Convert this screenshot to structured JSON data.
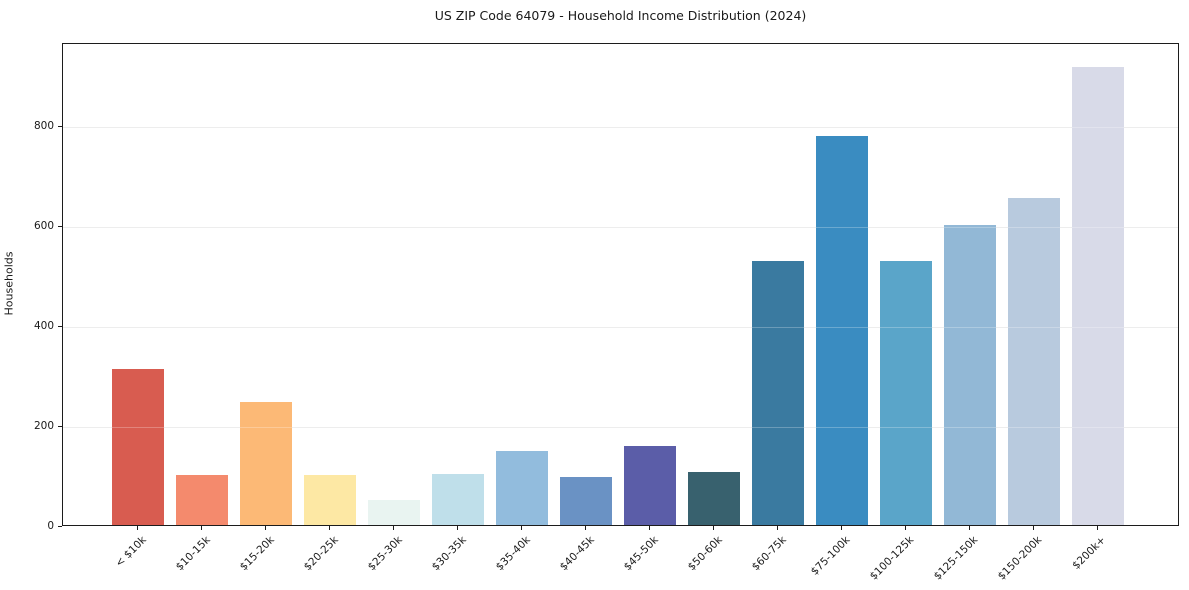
{
  "chart_data": {
    "type": "bar",
    "title": "US ZIP Code 64079 - Household Income Distribution (2024)",
    "ylabel": "Households",
    "xlabel": "",
    "categories": [
      "< $10k",
      "$10-15k",
      "$15-20k",
      "$20-25k",
      "$25-30k",
      "$30-35k",
      "$35-40k",
      "$40-45k",
      "$45-50k",
      "$50-60k",
      "$60-75k",
      "$75-100k",
      "$100-125k",
      "$125-150k",
      "$150-200k",
      "$200k+"
    ],
    "values": [
      313,
      101,
      247,
      101,
      50,
      103,
      148,
      97,
      158,
      107,
      529,
      778,
      529,
      600,
      654,
      916
    ],
    "bar_colors": [
      "#d85c50",
      "#f48a6d",
      "#fcb976",
      "#fde8a4",
      "#e9f4f1",
      "#bfdfea",
      "#92bcdd",
      "#6a92c4",
      "#5b5da8",
      "#38616e",
      "#3a7aa0",
      "#3a8cc1",
      "#5aa5c9",
      "#92b8d6",
      "#b8cade",
      "#d8dae8"
    ],
    "yticks": [
      0,
      200,
      400,
      600,
      800
    ],
    "ylim": [
      0,
      966
    ],
    "grid": "horizontal",
    "legend": false,
    "colors": {
      "background": "#ffffff",
      "grid": "#e7e7e7",
      "spine": "#1c1c1c",
      "text": "#1a1a1a"
    }
  }
}
